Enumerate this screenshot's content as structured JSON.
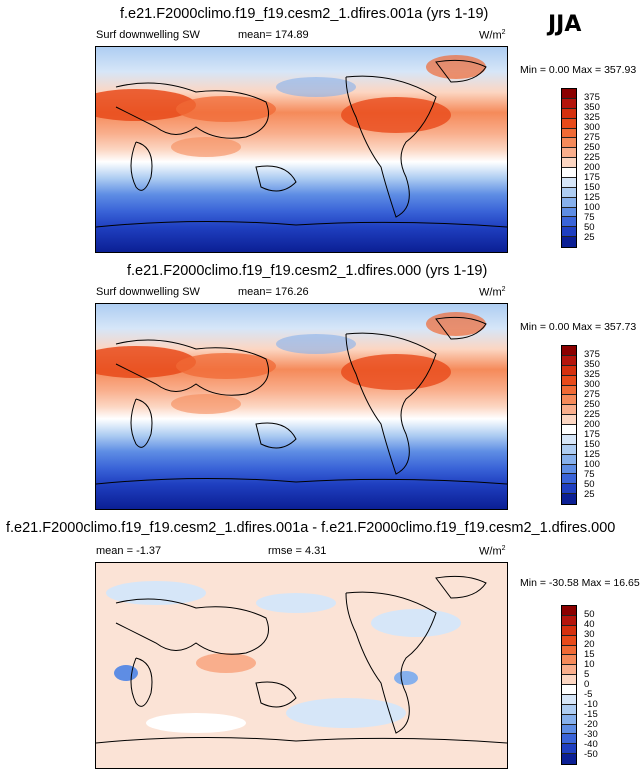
{
  "season": "JJA",
  "panels": [
    {
      "title": "f.e21.F2000climo.f19_f19.cesm2_1.dfires.001a (yrs 1-19)",
      "variable": "Surf downwelling SW",
      "stat_label": "mean=",
      "stat_value": "174.89",
      "units": "W/m",
      "units_exp": "2",
      "min_label": "Min =",
      "min_value": "0.00",
      "max_label": "Max =",
      "max_value": "357.93",
      "kind": "abs"
    },
    {
      "title": "f.e21.F2000climo.f19_f19.cesm2_1.dfires.000 (yrs 1-19)",
      "variable": "Surf downwelling SW",
      "stat_label": "mean=",
      "stat_value": "176.26",
      "units": "W/m",
      "units_exp": "2",
      "min_label": "Min =",
      "min_value": "0.00",
      "max_label": "Max =",
      "max_value": "357.73",
      "kind": "abs"
    },
    {
      "title": "f.e21.F2000climo.f19_f19.cesm2_1.dfires.001a - f.e21.F2000climo.f19_f19.cesm2_1.dfires.000",
      "mean_label": "mean =",
      "mean_value": "-1.37",
      "rmse_label": "rmse =",
      "rmse_value": "4.31",
      "units": "W/m",
      "units_exp": "2",
      "min_label": "Min =",
      "min_value": "-30.58",
      "max_label": "Max =",
      "max_value": "16.65",
      "kind": "diff"
    }
  ],
  "colorbars": {
    "abs": {
      "ticks": [
        "375",
        "350",
        "325",
        "300",
        "275",
        "250",
        "225",
        "200",
        "175",
        "150",
        "125",
        "100",
        "75",
        "50",
        "25"
      ],
      "colors": [
        "#8b0000",
        "#b4150c",
        "#d5300e",
        "#e84a1a",
        "#f06a35",
        "#f58a5a",
        "#f9ae8c",
        "#fcd6c2",
        "#ffffff",
        "#d6e6f8",
        "#aecdf2",
        "#86b0ec",
        "#5e8de4",
        "#3a64d8",
        "#1f3fc0",
        "#0b1f94"
      ]
    },
    "diff": {
      "ticks": [
        "50",
        "40",
        "30",
        "20",
        "15",
        "10",
        "5",
        "0",
        "-5",
        "-10",
        "-15",
        "-20",
        "-30",
        "-40",
        "-50"
      ],
      "colors": [
        "#8b0000",
        "#b4150c",
        "#d5300e",
        "#e84a1a",
        "#f06a35",
        "#f58a5a",
        "#f9ae8c",
        "#fcd6c2",
        "#ffffff",
        "#d6e6f8",
        "#aecdf2",
        "#86b0ec",
        "#5e8de4",
        "#3a64d8",
        "#1f3fc0",
        "#0b1f94"
      ]
    }
  }
}
